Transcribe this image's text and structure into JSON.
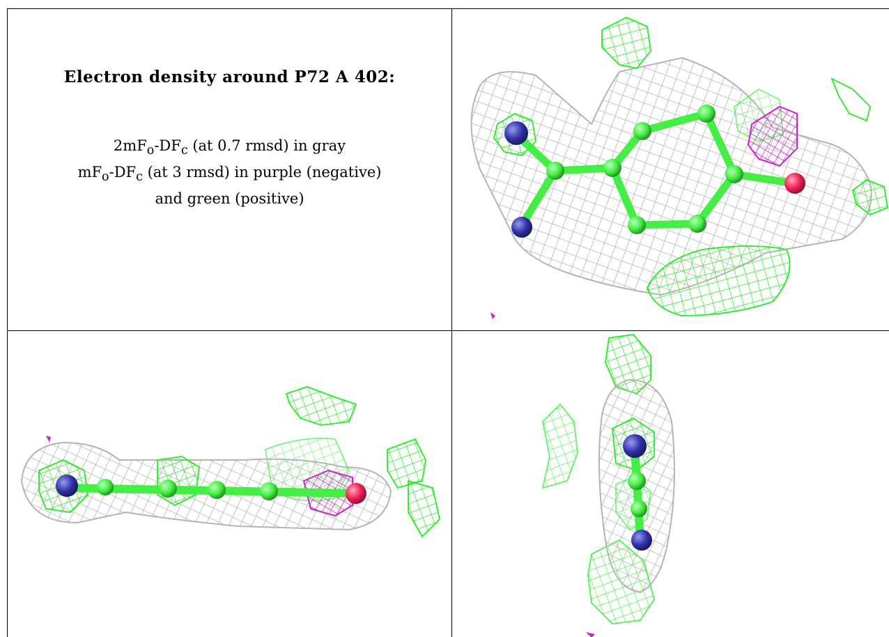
{
  "title": "Electron density around P72 A 402:",
  "legend": {
    "line1_a": "2mF",
    "line1_sub1": "o",
    "line1_b": "-DF",
    "line1_sub2": "c",
    "line1_c": " (at 0.7 rmsd) in gray",
    "line2_a": "mF",
    "line2_sub1": "o",
    "line2_b": "-DF",
    "line2_sub2": "c",
    "line2_c": " (at 3 rmsd) in purple (negative)",
    "line3": "and green (positive)"
  },
  "colors": {
    "map_2fofc": "#b4b4b4",
    "map_positive": "#22ee22",
    "map_negative": "#cc22cc",
    "carbon": "#44ee44",
    "nitrogen": "#3333aa",
    "oxygen": "#ee2255",
    "grid_lines": "#000000"
  },
  "panels": [
    {
      "view": "top-right",
      "description": "ligand ring top view"
    },
    {
      "view": "bottom-left",
      "description": "ligand edge-on horizontal view"
    },
    {
      "view": "bottom-right",
      "description": "ligand edge-on vertical view"
    }
  ]
}
